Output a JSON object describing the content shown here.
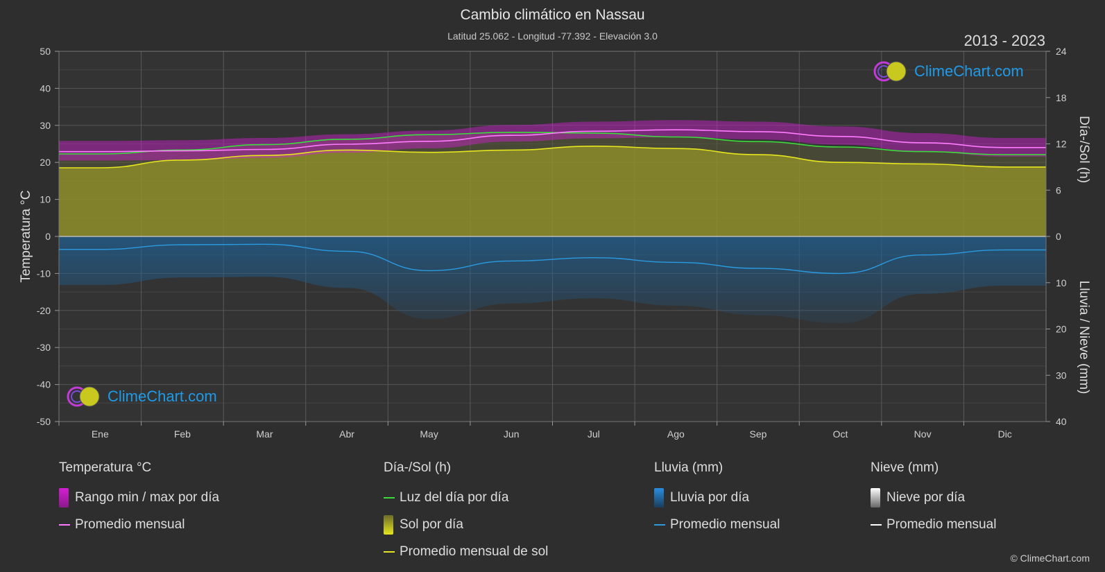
{
  "header": {
    "title": "Cambio climático en Nassau",
    "subtitle": "Latitud 25.062 - Longitud -77.392 - Elevación 3.0",
    "years": "2013 - 2023"
  },
  "branding": {
    "logo_text": "ClimeChart.com",
    "copyright": "© ClimeChart.com"
  },
  "colors": {
    "background": "#2e2e2e",
    "temp_range": "#d21ed2",
    "temp_avg": "#ff7bff",
    "daylight": "#3ddc3d",
    "sunshine_fill": "#8f8f2c",
    "sunshine_avg": "#e6e61e",
    "rain_fill": "#1f5f91",
    "rain_avg": "#2a9be0",
    "snow_avg": "#ffffff",
    "logo_blue": "#1e9be8"
  },
  "chart_data": {
    "type": "area",
    "months": [
      "Ene",
      "Feb",
      "Mar",
      "Abr",
      "May",
      "Jun",
      "Jul",
      "Ago",
      "Sep",
      "Oct",
      "Nov",
      "Dic"
    ],
    "axes": {
      "left_label": "Temperatura °C",
      "left_range": [
        -50,
        50
      ],
      "left_ticks": [
        "50",
        "40",
        "30",
        "20",
        "10",
        "0",
        "-10",
        "-20",
        "-30",
        "-40",
        "-50"
      ],
      "right_top_label": "Día-/Sol (h)",
      "right_top_range": [
        0,
        24
      ],
      "right_top_ticks": [
        "24",
        "18",
        "12",
        "6",
        "0"
      ],
      "right_bottom_label": "Lluvia / Nieve (mm)",
      "right_bottom_range": [
        0,
        40
      ],
      "right_bottom_ticks": [
        "0",
        "10",
        "20",
        "30",
        "40"
      ],
      "grid": true
    },
    "series": [
      {
        "name": "Promedio mensual",
        "group": "temperature",
        "unit": "°C",
        "values": [
          22.9,
          23.1,
          23.5,
          24.9,
          25.7,
          27.3,
          28.4,
          28.8,
          28.3,
          27.0,
          25.3,
          24.0
        ]
      },
      {
        "name": "Rango min / max por día",
        "group": "temperature",
        "unit": "°C",
        "min": [
          20.5,
          20.6,
          21.2,
          22.6,
          23.8,
          25.6,
          26.5,
          26.8,
          26.2,
          24.8,
          22.9,
          21.6
        ],
        "max": [
          25.8,
          26.0,
          26.6,
          27.6,
          28.6,
          30.1,
          31.0,
          31.4,
          31.0,
          29.7,
          27.9,
          26.6
        ]
      },
      {
        "name": "Luz del día por día",
        "group": "daylight",
        "unit": "h",
        "values": [
          10.7,
          11.2,
          11.9,
          12.6,
          13.2,
          13.5,
          13.4,
          12.9,
          12.3,
          11.6,
          11.0,
          10.6
        ]
      },
      {
        "name": "Promedio mensual de sol",
        "group": "sunshine",
        "unit": "h",
        "values": [
          8.9,
          9.9,
          10.5,
          11.2,
          10.9,
          11.2,
          11.7,
          11.4,
          10.6,
          9.6,
          9.4,
          9.0
        ]
      },
      {
        "name": "Promedio mensual",
        "group": "rain",
        "unit": "mm",
        "values": [
          2.8,
          1.8,
          1.7,
          3.2,
          7.4,
          5.3,
          4.6,
          5.6,
          6.9,
          8.0,
          4.0,
          2.9
        ]
      },
      {
        "name": "Promedio mensual",
        "group": "snow",
        "unit": "mm",
        "values": [
          0,
          0,
          0,
          0,
          0,
          0,
          0,
          0,
          0,
          0,
          0,
          0
        ]
      }
    ]
  },
  "legend": {
    "temperature": {
      "header": "Temperatura °C",
      "items": [
        "Rango min / max por día",
        "Promedio mensual"
      ]
    },
    "sun": {
      "header": "Día-/Sol (h)",
      "items": [
        "Luz del día por día",
        "Sol por día",
        "Promedio mensual de sol"
      ]
    },
    "rain": {
      "header": "Lluvia (mm)",
      "items": [
        "Lluvia por día",
        "Promedio mensual"
      ]
    },
    "snow": {
      "header": "Nieve (mm)",
      "items": [
        "Nieve por día",
        "Promedio mensual"
      ]
    }
  }
}
